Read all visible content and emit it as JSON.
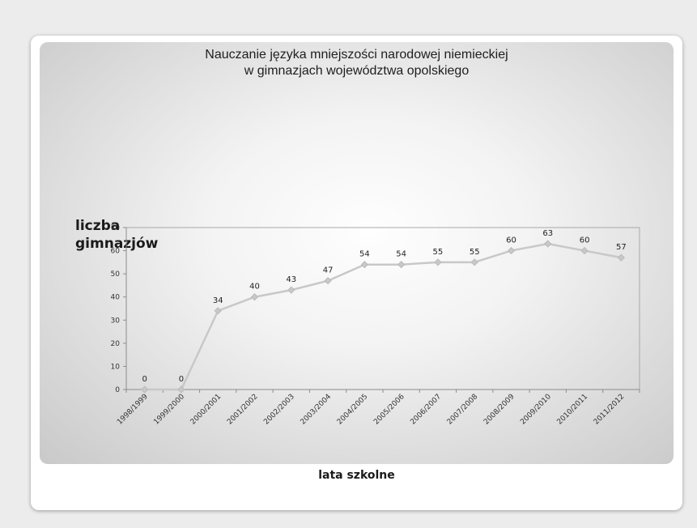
{
  "chart_data": {
    "type": "line",
    "title_lines": [
      "Nauczanie języka mniejszości narodowej niemieckiej",
      "w gimnazjach województwa opolskiego"
    ],
    "ylabel_lines": [
      "liczba",
      "gimnazjów"
    ],
    "xlabel": "lata szkolne",
    "categories": [
      "1998/1999",
      "1999/2000",
      "2000/2001",
      "2001/2002",
      "2002/2003",
      "2003/2004",
      "2004/2005",
      "2005/2006",
      "2006/2007",
      "2007/2008",
      "2008/2009",
      "2009/2010",
      "2010/2011",
      "2011/2012"
    ],
    "values": [
      0,
      0,
      34,
      40,
      43,
      47,
      54,
      54,
      55,
      55,
      60,
      63,
      60,
      57
    ],
    "ylim": [
      0,
      70
    ],
    "yticks": [
      0,
      10,
      20,
      30,
      40,
      50,
      60,
      70
    ],
    "grid": false,
    "legend": "none",
    "data_labels": true,
    "line_color": "#c8c8c8",
    "marker_color": "#c8c8c8"
  }
}
